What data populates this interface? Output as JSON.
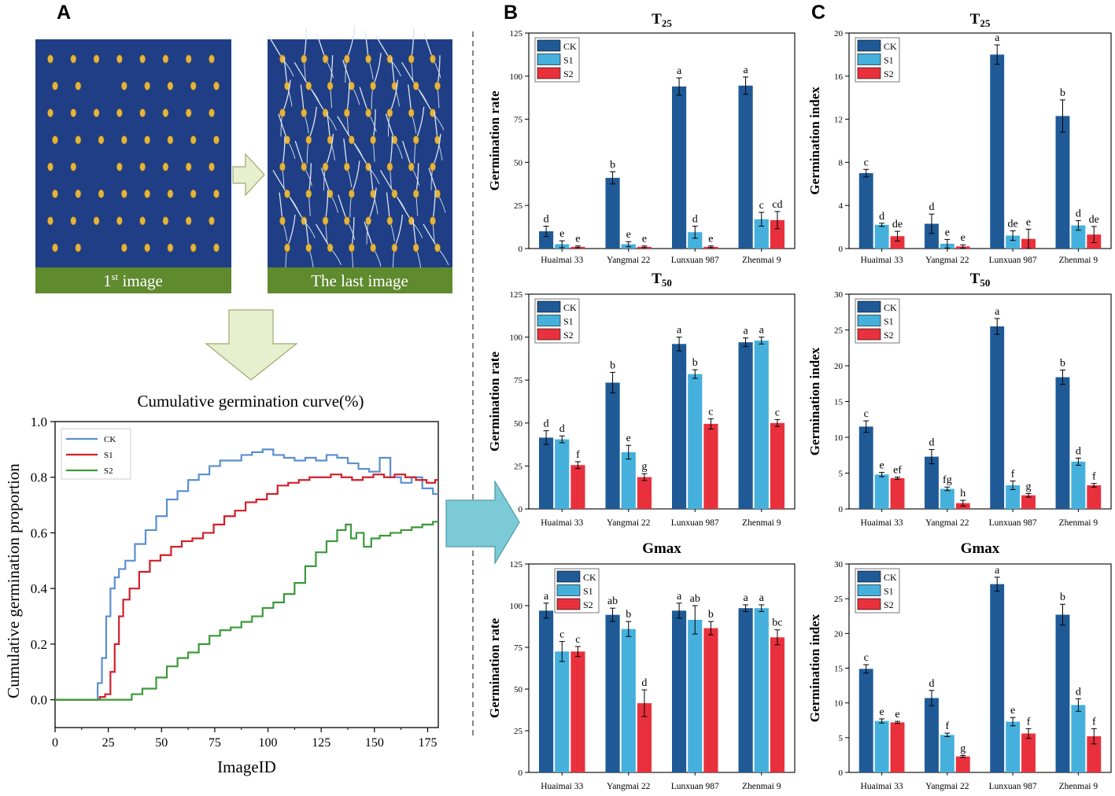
{
  "panels": {
    "A": "A",
    "B": "B",
    "C": "C"
  },
  "images": {
    "first_label": "1",
    "first_label_sup": "st",
    "first_label_rest": " image",
    "last_label": "The last image"
  },
  "colors": {
    "CK": "#1f5a96",
    "S1": "#45b0dc",
    "S2": "#e8313c",
    "curve_CK": "#5a8fd0",
    "curve_S1": "#d21f2a",
    "curve_S2": "#3a9a3a",
    "photo_bg": "#1f3e86",
    "label_bar": "#5f8a2e",
    "arrow_green": "#e7efcf",
    "arrow_blue": "#7ccad6"
  },
  "chart_data": [
    {
      "id": "cumulative",
      "type": "line",
      "title": "Cumulative germination curve(%)",
      "xlabel": "ImageID",
      "ylabel": "Cumulative germination proportion",
      "xlim": [
        0,
        180
      ],
      "ylim": [
        -0.1,
        1.0
      ],
      "xticks": [
        0,
        25,
        50,
        75,
        100,
        125,
        150,
        175
      ],
      "yticks": [
        0.0,
        0.2,
        0.4,
        0.6,
        0.8,
        1.0
      ],
      "ytick_labels": [
        "0.0",
        "0.2",
        "0.4",
        "0.6",
        "0.8",
        "1.0"
      ],
      "legend": [
        "CK",
        "S1",
        "S2"
      ],
      "series": [
        {
          "name": "CK",
          "x": [
            0,
            19,
            21,
            23,
            25,
            27,
            29,
            31,
            35,
            40,
            45,
            50,
            55,
            60,
            65,
            70,
            75,
            80,
            85,
            90,
            95,
            100,
            105,
            110,
            115,
            120,
            125,
            130,
            135,
            140,
            145,
            150,
            155,
            160,
            165,
            170,
            175,
            180
          ],
          "y": [
            0,
            0,
            0.06,
            0.15,
            0.3,
            0.4,
            0.44,
            0.47,
            0.5,
            0.56,
            0.61,
            0.66,
            0.72,
            0.75,
            0.79,
            0.81,
            0.84,
            0.86,
            0.86,
            0.88,
            0.89,
            0.9,
            0.88,
            0.87,
            0.86,
            0.87,
            0.86,
            0.88,
            0.87,
            0.85,
            0.83,
            0.82,
            0.87,
            0.8,
            0.78,
            0.8,
            0.76,
            0.74
          ]
        },
        {
          "name": "S1",
          "x": [
            0,
            20,
            22,
            25,
            27,
            29,
            31,
            33,
            37,
            42,
            47,
            52,
            57,
            62,
            67,
            72,
            77,
            82,
            87,
            92,
            97,
            102,
            107,
            112,
            117,
            122,
            127,
            132,
            137,
            142,
            147,
            152,
            157,
            162,
            167,
            172,
            177,
            180
          ],
          "y": [
            0,
            0,
            0.01,
            0.02,
            0.1,
            0.2,
            0.3,
            0.36,
            0.4,
            0.46,
            0.5,
            0.52,
            0.55,
            0.57,
            0.58,
            0.6,
            0.63,
            0.66,
            0.68,
            0.71,
            0.72,
            0.74,
            0.77,
            0.78,
            0.79,
            0.8,
            0.8,
            0.81,
            0.8,
            0.79,
            0.8,
            0.81,
            0.8,
            0.81,
            0.8,
            0.79,
            0.78,
            0.79
          ]
        },
        {
          "name": "S2",
          "x": [
            0,
            35,
            37,
            45,
            50,
            55,
            60,
            65,
            70,
            75,
            80,
            85,
            90,
            95,
            100,
            105,
            110,
            115,
            120,
            125,
            130,
            135,
            138,
            140,
            143,
            147,
            150,
            155,
            160,
            165,
            170,
            175,
            180
          ],
          "y": [
            0,
            0,
            0.02,
            0.04,
            0.08,
            0.12,
            0.15,
            0.17,
            0.2,
            0.23,
            0.25,
            0.26,
            0.28,
            0.3,
            0.33,
            0.35,
            0.38,
            0.42,
            0.48,
            0.53,
            0.57,
            0.61,
            0.63,
            0.58,
            0.6,
            0.55,
            0.58,
            0.59,
            0.6,
            0.61,
            0.62,
            0.63,
            0.64
          ]
        }
      ]
    },
    {
      "id": "B_T25",
      "type": "bar",
      "title": "T25",
      "title_main": "T",
      "title_sub": "25",
      "ylabel": "Germination rate",
      "ylim": [
        0,
        125
      ],
      "yticks": [
        0,
        25,
        50,
        75,
        100,
        125
      ],
      "categories": [
        "Huaimai 33",
        "Yangmai 22",
        "Lunxuan 987",
        "Zhenmai 9"
      ],
      "series": [
        {
          "name": "CK",
          "values": [
            10,
            41,
            94,
            94.5
          ],
          "errors": [
            3,
            3.5,
            5,
            5
          ],
          "letters": [
            "d",
            "b",
            "a",
            "a"
          ]
        },
        {
          "name": "S1",
          "values": [
            2.5,
            2.5,
            9.5,
            17
          ],
          "errors": [
            2,
            1.5,
            3.5,
            4
          ],
          "letters": [
            "e",
            "e",
            "d",
            "c"
          ]
        },
        {
          "name": "S2",
          "values": [
            1,
            1,
            1,
            16.5
          ],
          "errors": [
            0.5,
            0.5,
            0.5,
            5
          ],
          "letters": [
            "e",
            "e",
            "e",
            "cd"
          ]
        }
      ]
    },
    {
      "id": "B_T50",
      "type": "bar",
      "title": "T50",
      "title_main": "T",
      "title_sub": "50",
      "ylabel": "Germination rate",
      "ylim": [
        0,
        125
      ],
      "yticks": [
        0,
        25,
        50,
        75,
        100,
        125
      ],
      "categories": [
        "Huaimai 33",
        "Yangmai 22",
        "Lunxuan 987",
        "Zhenmai 9"
      ],
      "series": [
        {
          "name": "CK",
          "values": [
            41.5,
            73.5,
            96,
            97
          ],
          "errors": [
            4,
            6,
            4,
            2.5
          ],
          "letters": [
            "d",
            "b",
            "a",
            "a"
          ]
        },
        {
          "name": "S1",
          "values": [
            40.5,
            33,
            78.5,
            98
          ],
          "errors": [
            2,
            4,
            2.5,
            2
          ],
          "letters": [
            "d",
            "e",
            "b",
            "a"
          ]
        },
        {
          "name": "S2",
          "values": [
            25.5,
            18.5,
            49.5,
            50
          ],
          "errors": [
            2,
            2,
            3,
            2
          ],
          "letters": [
            "f",
            "g",
            "c",
            "c"
          ]
        }
      ]
    },
    {
      "id": "B_Gmax",
      "type": "bar",
      "title": "Gmax",
      "title_main": "Gmax",
      "title_sub": "",
      "ylabel": "Germination rate",
      "ylim": [
        0,
        125
      ],
      "yticks": [
        0,
        25,
        50,
        75,
        100,
        125
      ],
      "categories": [
        "Huaimai 33",
        "Yangmai 22",
        "Lunxuan 987",
        "Zhenmai 9"
      ],
      "series": [
        {
          "name": "CK",
          "values": [
            97,
            94.5,
            97,
            98.5
          ],
          "errors": [
            4.5,
            4,
            4.5,
            2
          ],
          "letters": [
            "a",
            "ab",
            "a",
            "a"
          ]
        },
        {
          "name": "S1",
          "values": [
            72.5,
            86,
            91.5,
            98.5
          ],
          "errors": [
            6,
            4.5,
            8.5,
            2
          ],
          "letters": [
            "c",
            "b",
            "ab",
            "a"
          ]
        },
        {
          "name": "S2",
          "values": [
            72.5,
            41.5,
            86.5,
            81
          ],
          "errors": [
            3,
            8,
            4,
            4.5
          ],
          "letters": [
            "c",
            "d",
            "b",
            "bc"
          ]
        }
      ]
    },
    {
      "id": "C_T25",
      "type": "bar",
      "title": "T25",
      "title_main": "T",
      "title_sub": "25",
      "ylabel": "Germination index",
      "ylim": [
        0,
        20
      ],
      "yticks": [
        0,
        4,
        8,
        12,
        16,
        20
      ],
      "categories": [
        "Huaimai 33",
        "Yangmai 22",
        "Lunxuan 987",
        "Zhenmai 9"
      ],
      "series": [
        {
          "name": "CK",
          "values": [
            7,
            2.3,
            18,
            12.3
          ],
          "errors": [
            0.35,
            0.9,
            0.9,
            1.5
          ],
          "letters": [
            "c",
            "d",
            "a",
            "b"
          ]
        },
        {
          "name": "S1",
          "values": [
            2.2,
            0.45,
            1.2,
            2.15
          ],
          "errors": [
            0.15,
            0.4,
            0.45,
            0.45
          ],
          "letters": [
            "d",
            "e",
            "de",
            "d"
          ]
        },
        {
          "name": "S2",
          "values": [
            1.15,
            0.2,
            0.9,
            1.3
          ],
          "errors": [
            0.45,
            0.15,
            0.9,
            0.75
          ],
          "letters": [
            "de",
            "e",
            "e",
            "de"
          ]
        }
      ]
    },
    {
      "id": "C_T50",
      "type": "bar",
      "title": "T50",
      "title_main": "T",
      "title_sub": "50",
      "ylabel": "Germination index",
      "ylim": [
        0,
        30
      ],
      "yticks": [
        0,
        5,
        10,
        15,
        20,
        25,
        30
      ],
      "categories": [
        "Huaimai 33",
        "Yangmai 22",
        "Lunxuan 987",
        "Zhenmai 9"
      ],
      "series": [
        {
          "name": "CK",
          "values": [
            11.5,
            7.3,
            25.5,
            18.4
          ],
          "errors": [
            0.8,
            1,
            1.1,
            1
          ],
          "letters": [
            "c",
            "d",
            "a",
            "b"
          ]
        },
        {
          "name": "S1",
          "values": [
            4.8,
            2.8,
            3.3,
            6.6
          ],
          "errors": [
            0.3,
            0.25,
            0.6,
            0.5
          ],
          "letters": [
            "e",
            "fg",
            "f",
            "d"
          ]
        },
        {
          "name": "S2",
          "values": [
            4.3,
            0.8,
            1.9,
            3.3
          ],
          "errors": [
            0.15,
            0.4,
            0.25,
            0.25
          ],
          "letters": [
            "ef",
            "h",
            "g",
            "f"
          ]
        }
      ]
    },
    {
      "id": "C_Gmax",
      "type": "bar",
      "title": "Gmax",
      "title_main": "Gmax",
      "title_sub": "",
      "ylabel": "Germination index",
      "ylim": [
        0,
        30
      ],
      "yticks": [
        0,
        5,
        10,
        15,
        20,
        25,
        30
      ],
      "categories": [
        "Huaimai 33",
        "Yangmai 22",
        "Lunxuan 987",
        "Zhenmai 9"
      ],
      "series": [
        {
          "name": "CK",
          "values": [
            14.9,
            10.7,
            27.1,
            22.7
          ],
          "errors": [
            0.6,
            1.1,
            1,
            1.5
          ],
          "letters": [
            "c",
            "d",
            "a",
            "b"
          ]
        },
        {
          "name": "S1",
          "values": [
            7.4,
            5.4,
            7.3,
            9.7
          ],
          "errors": [
            0.3,
            0.25,
            0.6,
            0.9
          ],
          "letters": [
            "e",
            "f",
            "e",
            "d"
          ]
        },
        {
          "name": "S2",
          "values": [
            7.2,
            2.3,
            5.6,
            5.2
          ],
          "errors": [
            0.15,
            0.15,
            0.7,
            1.1
          ],
          "letters": [
            "e",
            "g",
            "f",
            "f"
          ]
        }
      ]
    }
  ]
}
